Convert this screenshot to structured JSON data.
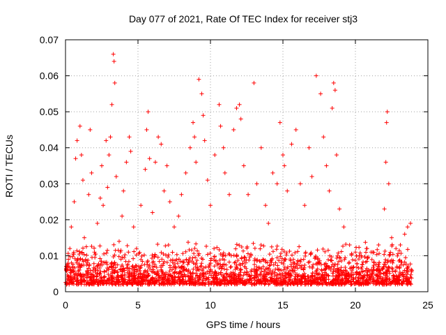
{
  "chart_data": {
    "type": "scatter",
    "title": "Day 077 of 2021, Rate Of TEC Index for receiver stj3",
    "xlabel": "GPS time / hours",
    "ylabel": "ROTI / TECUs",
    "xlim": [
      0,
      25
    ],
    "ylim": [
      0,
      0.07
    ],
    "xticks": [
      0,
      5,
      10,
      15,
      20,
      25
    ],
    "xtick_labels": [
      "0",
      "5",
      "10",
      "15",
      "20",
      "25"
    ],
    "yticks": [
      0,
      0.01,
      0.02,
      0.03,
      0.04,
      0.05,
      0.06,
      0.07
    ],
    "ytick_labels": [
      "0",
      "0.01",
      "0.02",
      "0.03",
      "0.04",
      "0.05",
      "0.06",
      "0.07"
    ],
    "grid": true,
    "marker": "plus",
    "series": [
      {
        "name": "ROTI",
        "color": "#ff0000",
        "points": [
          [
            0.1,
            0.006
          ],
          [
            0.2,
            0.009
          ],
          [
            0.3,
            0.012
          ],
          [
            0.4,
            0.018
          ],
          [
            0.5,
            0.007
          ],
          [
            0.6,
            0.025
          ],
          [
            0.7,
            0.037
          ],
          [
            0.8,
            0.042
          ],
          [
            0.9,
            0.005
          ],
          [
            1.0,
            0.046
          ],
          [
            1.1,
            0.038
          ],
          [
            1.2,
            0.031
          ],
          [
            1.3,
            0.015
          ],
          [
            1.5,
            0.008
          ],
          [
            1.6,
            0.027
          ],
          [
            1.7,
            0.045
          ],
          [
            1.8,
            0.033
          ],
          [
            2.0,
            0.011
          ],
          [
            2.2,
            0.019
          ],
          [
            2.4,
            0.026
          ],
          [
            2.5,
            0.035
          ],
          [
            2.6,
            0.024
          ],
          [
            2.8,
            0.042
          ],
          [
            2.9,
            0.029
          ],
          [
            3.0,
            0.038
          ],
          [
            3.1,
            0.043
          ],
          [
            3.2,
            0.052
          ],
          [
            3.3,
            0.066
          ],
          [
            3.35,
            0.064
          ],
          [
            3.4,
            0.058
          ],
          [
            3.5,
            0.032
          ],
          [
            3.7,
            0.014
          ],
          [
            3.9,
            0.021
          ],
          [
            4.0,
            0.028
          ],
          [
            4.2,
            0.036
          ],
          [
            4.4,
            0.043
          ],
          [
            4.5,
            0.039
          ],
          [
            4.7,
            0.018
          ],
          [
            4.9,
            0.012
          ],
          [
            5.2,
            0.024
          ],
          [
            5.5,
            0.034
          ],
          [
            5.6,
            0.045
          ],
          [
            5.7,
            0.05
          ],
          [
            5.8,
            0.037
          ],
          [
            6.0,
            0.022
          ],
          [
            6.2,
            0.036
          ],
          [
            6.4,
            0.043
          ],
          [
            6.6,
            0.041
          ],
          [
            6.8,
            0.028
          ],
          [
            7.0,
            0.035
          ],
          [
            7.2,
            0.025
          ],
          [
            7.5,
            0.018
          ],
          [
            7.8,
            0.021
          ],
          [
            8.0,
            0.027
          ],
          [
            8.3,
            0.033
          ],
          [
            8.6,
            0.04
          ],
          [
            8.8,
            0.047
          ],
          [
            8.9,
            0.043
          ],
          [
            9.0,
            0.036
          ],
          [
            9.2,
            0.059
          ],
          [
            9.4,
            0.055
          ],
          [
            9.5,
            0.049
          ],
          [
            9.6,
            0.042
          ],
          [
            9.8,
            0.031
          ],
          [
            10.0,
            0.024
          ],
          [
            10.3,
            0.038
          ],
          [
            10.6,
            0.052
          ],
          [
            10.7,
            0.046
          ],
          [
            10.9,
            0.04
          ],
          [
            11.0,
            0.033
          ],
          [
            11.3,
            0.027
          ],
          [
            11.6,
            0.045
          ],
          [
            11.8,
            0.051
          ],
          [
            12.0,
            0.052
          ],
          [
            12.1,
            0.048
          ],
          [
            12.3,
            0.035
          ],
          [
            12.6,
            0.027
          ],
          [
            13.0,
            0.058
          ],
          [
            13.2,
            0.03
          ],
          [
            13.5,
            0.04
          ],
          [
            13.8,
            0.024
          ],
          [
            14.0,
            0.019
          ],
          [
            14.3,
            0.033
          ],
          [
            14.6,
            0.03
          ],
          [
            14.8,
            0.047
          ],
          [
            15.0,
            0.038
          ],
          [
            15.1,
            0.035
          ],
          [
            15.3,
            0.028
          ],
          [
            15.6,
            0.041
          ],
          [
            15.9,
            0.045
          ],
          [
            16.2,
            0.03
          ],
          [
            16.5,
            0.024
          ],
          [
            16.8,
            0.04
          ],
          [
            17.0,
            0.032
          ],
          [
            17.3,
            0.06
          ],
          [
            17.6,
            0.055
          ],
          [
            17.8,
            0.043
          ],
          [
            18.0,
            0.035
          ],
          [
            18.2,
            0.028
          ],
          [
            18.4,
            0.051
          ],
          [
            18.5,
            0.058
          ],
          [
            18.6,
            0.056
          ],
          [
            18.7,
            0.038
          ],
          [
            18.9,
            0.023
          ],
          [
            19.2,
            0.018
          ],
          [
            19.6,
            0.013
          ],
          [
            20.0,
            0.011
          ],
          [
            20.4,
            0.01
          ],
          [
            20.8,
            0.012
          ],
          [
            21.2,
            0.011
          ],
          [
            21.6,
            0.013
          ],
          [
            22.0,
            0.023
          ],
          [
            22.1,
            0.036
          ],
          [
            22.15,
            0.047
          ],
          [
            22.2,
            0.05
          ],
          [
            22.3,
            0.03
          ],
          [
            22.5,
            0.015
          ],
          [
            22.8,
            0.012
          ],
          [
            23.1,
            0.013
          ],
          [
            23.4,
            0.016
          ],
          [
            23.6,
            0.018
          ],
          [
            23.8,
            0.019
          ]
        ]
      }
    ]
  }
}
